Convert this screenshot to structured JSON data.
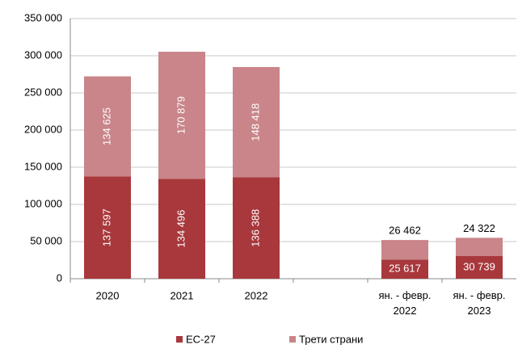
{
  "chart_data": {
    "type": "stacked_bar",
    "categories": [
      "2020",
      "2021",
      "2022",
      null,
      "ян. - февр.\n2022",
      "ян. - февр.\n2023"
    ],
    "series": [
      {
        "name": "ЕС-27",
        "color": "#a8383c",
        "values": [
          137597,
          134496,
          136388,
          null,
          25617,
          30739
        ],
        "value_labels": [
          "137 597",
          "134 496",
          "136 388",
          null,
          "25 617",
          "30 739"
        ]
      },
      {
        "name": "Трети страни",
        "color": "#c98589",
        "values": [
          134625,
          170879,
          148418,
          null,
          26462,
          24322
        ],
        "value_labels": [
          "134 625",
          "170 879",
          "148 418",
          null,
          "26 462",
          "24 322"
        ]
      }
    ],
    "ylim": [
      0,
      350000
    ],
    "yticks": [
      0,
      {
        "value": 50000,
        "label": "50 000"
      },
      {
        "value": 100000,
        "label": "100 000"
      },
      {
        "value": 150000,
        "label": "150 000"
      },
      {
        "value": 200000,
        "label": "200 000"
      },
      {
        "value": 250000,
        "label": "250 000"
      },
      {
        "value": 300000,
        "label": "300 000"
      },
      {
        "value": 350000,
        "label": "350 000"
      }
    ],
    "grid": true,
    "legend": "bottom"
  }
}
